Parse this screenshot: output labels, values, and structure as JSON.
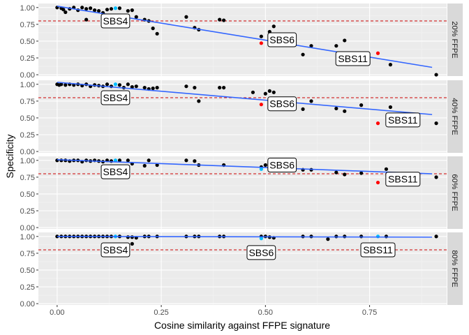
{
  "chart_data": {
    "type": "scatter",
    "xlabel": "Cosine similarity against FFPE signature",
    "ylabel": "Specificity",
    "xlim": [
      -0.045,
      0.935
    ],
    "ylim": [
      -0.02,
      1.06
    ],
    "x_ticks": [
      0.0,
      0.25,
      0.5,
      0.75
    ],
    "x_tick_labels": [
      "0.00",
      "0.25",
      "0.50",
      "0.75"
    ],
    "y_ticks": [
      0.0,
      0.25,
      0.5,
      0.75,
      1.0
    ],
    "y_tick_labels": [
      "0.00",
      "0.25",
      "0.50",
      "0.75",
      "1.00"
    ],
    "threshold": 0.8,
    "grid": true,
    "colors": {
      "panel_bg": "#ebebeb",
      "grid_major": "#ffffff",
      "grid_minor": "#f3f3f3",
      "strip_bg": "#d9d9d9",
      "point_default": "#000000",
      "point_highlight_blue": "#00bfff",
      "point_highlight_red": "#ff0000",
      "trend_line": "#3366ff",
      "threshold_line": "#cc0000"
    },
    "panels": [
      {
        "strip": "20% FFPE",
        "trend": [
          [
            0.0,
            1.02
          ],
          [
            0.9,
            0.11
          ]
        ],
        "points_black": [
          [
            0.0,
            1.0
          ],
          [
            0.01,
            0.99
          ],
          [
            0.015,
            0.97
          ],
          [
            0.02,
            0.93
          ],
          [
            0.03,
            0.98
          ],
          [
            0.04,
            1.0
          ],
          [
            0.05,
            0.96
          ],
          [
            0.06,
            1.0
          ],
          [
            0.07,
            0.98
          ],
          [
            0.08,
            0.99
          ],
          [
            0.09,
            0.96
          ],
          [
            0.1,
            0.95
          ],
          [
            0.11,
            0.92
          ],
          [
            0.12,
            0.97
          ],
          [
            0.13,
            0.98
          ],
          [
            0.15,
            0.99
          ],
          [
            0.17,
            0.95
          ],
          [
            0.18,
            0.96
          ],
          [
            0.19,
            0.86
          ],
          [
            0.21,
            0.82
          ],
          [
            0.22,
            0.8
          ],
          [
            0.23,
            0.69
          ],
          [
            0.24,
            0.61
          ],
          [
            0.31,
            0.86
          ],
          [
            0.33,
            0.7
          ],
          [
            0.34,
            0.67
          ],
          [
            0.39,
            0.82
          ],
          [
            0.4,
            0.81
          ],
          [
            0.49,
            0.57
          ],
          [
            0.51,
            0.64
          ],
          [
            0.52,
            0.72
          ],
          [
            0.59,
            0.3
          ],
          [
            0.61,
            0.43
          ],
          [
            0.67,
            0.43
          ],
          [
            0.69,
            0.51
          ],
          [
            0.8,
            0.15
          ],
          [
            0.91,
            0.0
          ],
          [
            0.07,
            0.82
          ]
        ],
        "points_blue": [
          [
            0.14,
            0.99
          ]
        ],
        "points_red": [
          [
            0.49,
            0.47
          ],
          [
            0.77,
            0.32
          ]
        ],
        "labels": [
          {
            "text": "SBS4",
            "x": 0.14,
            "y": 0.8
          },
          {
            "text": "SBS6",
            "x": 0.54,
            "y": 0.52
          },
          {
            "text": "SBS11",
            "x": 0.71,
            "y": 0.24
          }
        ]
      },
      {
        "strip": "40% FFPE",
        "trend": [
          [
            0.0,
            1.03
          ],
          [
            0.9,
            0.55
          ]
        ],
        "points_black": [
          [
            0.0,
            1.0
          ],
          [
            0.005,
            0.99
          ],
          [
            0.01,
            1.0
          ],
          [
            0.02,
            0.99
          ],
          [
            0.03,
            1.0
          ],
          [
            0.04,
            0.99
          ],
          [
            0.05,
            1.0
          ],
          [
            0.06,
            0.98
          ],
          [
            0.07,
            1.0
          ],
          [
            0.08,
            0.97
          ],
          [
            0.09,
            0.99
          ],
          [
            0.1,
            0.98
          ],
          [
            0.11,
            0.97
          ],
          [
            0.12,
            1.0
          ],
          [
            0.13,
            0.97
          ],
          [
            0.15,
            0.99
          ],
          [
            0.16,
            0.95
          ],
          [
            0.17,
            1.0
          ],
          [
            0.18,
            0.96
          ],
          [
            0.19,
            0.97
          ],
          [
            0.21,
            0.95
          ],
          [
            0.22,
            0.93
          ],
          [
            0.23,
            0.94
          ],
          [
            0.24,
            0.95
          ],
          [
            0.31,
            0.97
          ],
          [
            0.33,
            0.95
          ],
          [
            0.34,
            0.75
          ],
          [
            0.39,
            0.95
          ],
          [
            0.4,
            0.95
          ],
          [
            0.47,
            0.88
          ],
          [
            0.5,
            0.86
          ],
          [
            0.51,
            0.9
          ],
          [
            0.52,
            0.88
          ],
          [
            0.59,
            0.63
          ],
          [
            0.61,
            0.75
          ],
          [
            0.67,
            0.64
          ],
          [
            0.69,
            0.6
          ],
          [
            0.73,
            0.69
          ],
          [
            0.8,
            0.66
          ],
          [
            0.91,
            0.42
          ]
        ],
        "points_blue": [
          [
            0.14,
            1.0
          ]
        ],
        "points_red": [
          [
            0.49,
            0.7
          ],
          [
            0.77,
            0.42
          ]
        ],
        "labels": [
          {
            "text": "SBS4",
            "x": 0.14,
            "y": 0.8
          },
          {
            "text": "SBS6",
            "x": 0.54,
            "y": 0.71
          },
          {
            "text": "SBS11",
            "x": 0.83,
            "y": 0.47
          }
        ]
      },
      {
        "strip": "60% FFPE",
        "trend": [
          [
            0.0,
            1.01
          ],
          [
            0.9,
            0.8
          ]
        ],
        "points_black": [
          [
            0.0,
            1.0
          ],
          [
            0.01,
            1.0
          ],
          [
            0.02,
            1.0
          ],
          [
            0.03,
            0.99
          ],
          [
            0.04,
            1.0
          ],
          [
            0.05,
            1.0
          ],
          [
            0.06,
            0.98
          ],
          [
            0.07,
            1.0
          ],
          [
            0.08,
            0.99
          ],
          [
            0.09,
            1.0
          ],
          [
            0.1,
            0.99
          ],
          [
            0.11,
            0.98
          ],
          [
            0.12,
            1.0
          ],
          [
            0.13,
            0.99
          ],
          [
            0.15,
            1.0
          ],
          [
            0.17,
            1.0
          ],
          [
            0.18,
            0.95
          ],
          [
            0.22,
            1.0
          ],
          [
            0.21,
            0.92
          ],
          [
            0.24,
            0.93
          ],
          [
            0.31,
            1.0
          ],
          [
            0.33,
            0.99
          ],
          [
            0.34,
            0.93
          ],
          [
            0.4,
            0.93
          ],
          [
            0.49,
            0.9
          ],
          [
            0.5,
            0.93
          ],
          [
            0.52,
            0.89
          ],
          [
            0.59,
            0.86
          ],
          [
            0.61,
            0.86
          ],
          [
            0.67,
            0.82
          ],
          [
            0.69,
            0.79
          ],
          [
            0.73,
            0.81
          ],
          [
            0.79,
            0.87
          ],
          [
            0.91,
            0.75
          ]
        ],
        "points_blue": [
          [
            0.14,
            1.0
          ],
          [
            0.49,
            0.87
          ]
        ],
        "points_red": [
          [
            0.77,
            0.67
          ]
        ],
        "labels": [
          {
            "text": "SBS4",
            "x": 0.14,
            "y": 0.83
          },
          {
            "text": "SBS6",
            "x": 0.54,
            "y": 0.93
          },
          {
            "text": "SBS11",
            "x": 0.83,
            "y": 0.72
          }
        ]
      },
      {
        "strip": "80% FFPE",
        "trend": [
          [
            0.0,
            1.0
          ],
          [
            0.9,
            0.99
          ]
        ],
        "points_black": [
          [
            0.0,
            1.0
          ],
          [
            0.01,
            1.0
          ],
          [
            0.02,
            1.0
          ],
          [
            0.03,
            1.0
          ],
          [
            0.04,
            1.0
          ],
          [
            0.05,
            1.0
          ],
          [
            0.06,
            1.0
          ],
          [
            0.07,
            1.0
          ],
          [
            0.08,
            1.0
          ],
          [
            0.09,
            1.0
          ],
          [
            0.1,
            1.0
          ],
          [
            0.11,
            1.0
          ],
          [
            0.12,
            1.0
          ],
          [
            0.13,
            1.0
          ],
          [
            0.15,
            1.0
          ],
          [
            0.17,
            0.99
          ],
          [
            0.18,
            0.99
          ],
          [
            0.19,
            0.98
          ],
          [
            0.21,
            1.0
          ],
          [
            0.22,
            1.0
          ],
          [
            0.24,
            1.0
          ],
          [
            0.31,
            1.0
          ],
          [
            0.33,
            1.0
          ],
          [
            0.34,
            1.0
          ],
          [
            0.39,
            1.0
          ],
          [
            0.4,
            1.0
          ],
          [
            0.49,
            1.0
          ],
          [
            0.5,
            1.0
          ],
          [
            0.51,
            0.99
          ],
          [
            0.52,
            0.98
          ],
          [
            0.59,
            1.0
          ],
          [
            0.61,
            1.0
          ],
          [
            0.65,
            0.96
          ],
          [
            0.67,
            1.0
          ],
          [
            0.69,
            1.0
          ],
          [
            0.73,
            1.0
          ],
          [
            0.79,
            1.0
          ],
          [
            0.91,
            1.0
          ],
          [
            0.18,
            0.89
          ]
        ],
        "points_blue": [
          [
            0.14,
            1.0
          ],
          [
            0.49,
            0.97
          ],
          [
            0.77,
            1.0
          ]
        ],
        "points_red": [],
        "labels": [
          {
            "text": "SBS4",
            "x": 0.14,
            "y": 0.8
          },
          {
            "text": "SBS6",
            "x": 0.49,
            "y": 0.76
          },
          {
            "text": "SBS11",
            "x": 0.77,
            "y": 0.8
          }
        ]
      }
    ]
  }
}
